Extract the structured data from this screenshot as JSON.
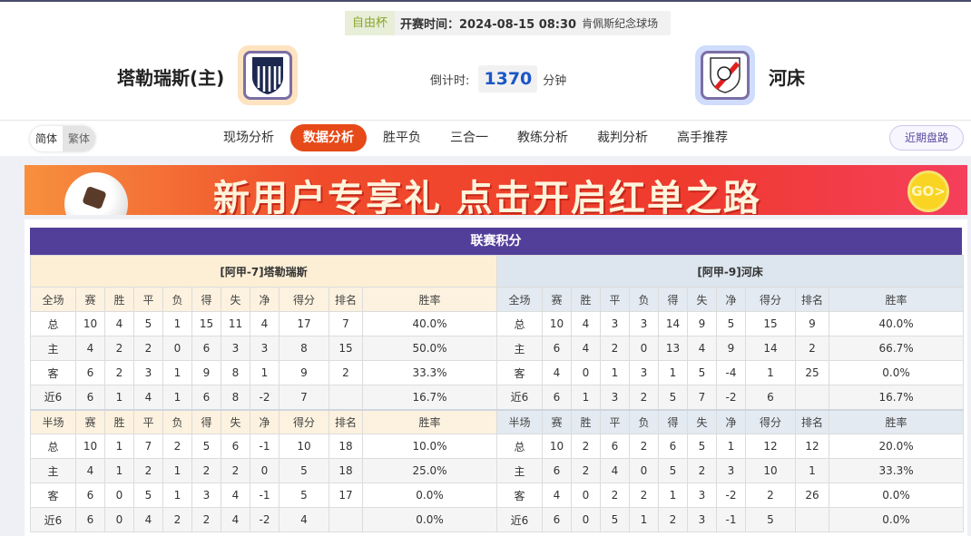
{
  "match": {
    "cup": "自由杯",
    "time_label": "开赛时间：2024-08-15 08:30",
    "venue": "肯佩斯纪念球场",
    "home_team": "塔勒瑞斯(主)",
    "away_team": "河床",
    "countdown_label": "倒计时:",
    "countdown_value": "1370",
    "countdown_unit": "分钟"
  },
  "nav": {
    "lang": [
      "简体",
      "繁体"
    ],
    "tabs": [
      "现场分析",
      "数据分析",
      "胜平负",
      "三合一",
      "教练分析",
      "裁判分析",
      "高手推荐"
    ],
    "active_tab": "数据分析",
    "recent_button": "近期盘路"
  },
  "banner": {
    "text": "新用户专享礼  点击开启红单之路",
    "go": "GO>"
  },
  "standings": {
    "title": "联赛积分",
    "columns": [
      "赛",
      "胜",
      "平",
      "负",
      "得",
      "失",
      "净",
      "得分",
      "排名",
      "胜率"
    ],
    "teams": [
      {
        "header": "[阿甲-7]塔勒瑞斯",
        "sections": [
          {
            "label": "全场",
            "rows": [
              [
                "总",
                "10",
                "4",
                "5",
                "1",
                "15",
                "11",
                "4",
                "17",
                "7",
                "40.0%"
              ],
              [
                "主",
                "4",
                "2",
                "2",
                "0",
                "6",
                "3",
                "3",
                "8",
                "15",
                "50.0%"
              ],
              [
                "客",
                "6",
                "2",
                "3",
                "1",
                "9",
                "8",
                "1",
                "9",
                "2",
                "33.3%"
              ],
              [
                "近6",
                "6",
                "1",
                "4",
                "1",
                "6",
                "8",
                "-2",
                "7",
                "",
                "16.7%"
              ]
            ]
          },
          {
            "label": "半场",
            "rows": [
              [
                "总",
                "10",
                "1",
                "7",
                "2",
                "5",
                "6",
                "-1",
                "10",
                "18",
                "10.0%"
              ],
              [
                "主",
                "4",
                "1",
                "2",
                "1",
                "2",
                "2",
                "0",
                "5",
                "18",
                "25.0%"
              ],
              [
                "客",
                "6",
                "0",
                "5",
                "1",
                "3",
                "4",
                "-1",
                "5",
                "17",
                "0.0%"
              ],
              [
                "近6",
                "6",
                "0",
                "4",
                "2",
                "2",
                "4",
                "-2",
                "4",
                "",
                "0.0%"
              ]
            ]
          }
        ]
      },
      {
        "header": "[阿甲-9]河床",
        "sections": [
          {
            "label": "全场",
            "rows": [
              [
                "总",
                "10",
                "4",
                "3",
                "3",
                "14",
                "9",
                "5",
                "15",
                "9",
                "40.0%"
              ],
              [
                "主",
                "6",
                "4",
                "2",
                "0",
                "13",
                "4",
                "9",
                "14",
                "2",
                "66.7%"
              ],
              [
                "客",
                "4",
                "0",
                "1",
                "3",
                "1",
                "5",
                "-4",
                "1",
                "25",
                "0.0%"
              ],
              [
                "近6",
                "6",
                "1",
                "3",
                "2",
                "5",
                "7",
                "-2",
                "6",
                "",
                "16.7%"
              ]
            ]
          },
          {
            "label": "半场",
            "rows": [
              [
                "总",
                "10",
                "2",
                "6",
                "2",
                "6",
                "5",
                "1",
                "12",
                "12",
                "20.0%"
              ],
              [
                "主",
                "6",
                "2",
                "4",
                "0",
                "5",
                "2",
                "3",
                "10",
                "1",
                "33.3%"
              ],
              [
                "客",
                "4",
                "0",
                "2",
                "2",
                "1",
                "3",
                "-2",
                "2",
                "26",
                "0.0%"
              ],
              [
                "近6",
                "6",
                "0",
                "5",
                "1",
                "2",
                "3",
                "-1",
                "5",
                "",
                "0.0%"
              ]
            ]
          }
        ]
      }
    ]
  }
}
